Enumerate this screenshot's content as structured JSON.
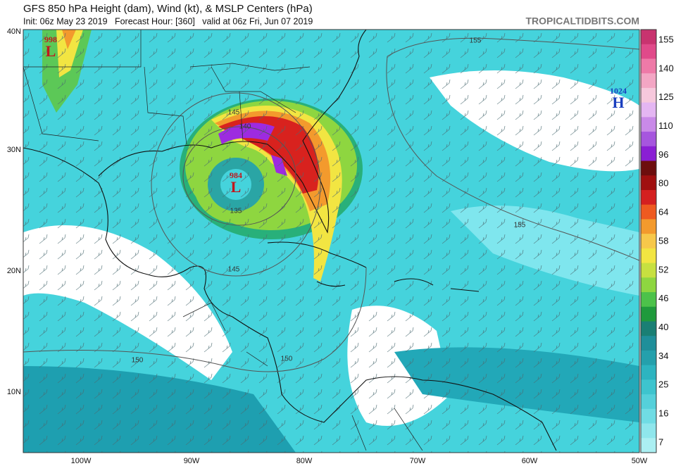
{
  "header": {
    "title": "GFS 850 hPa Height (dam), Wind (kt), & MSLP Centers (hPa)",
    "subtitle": "Init: 06z May 23 2019   Forecast Hour: [360]   valid at 06z Fri, Jun 07 2019",
    "credit": "TROPICALTIDBITS.COM"
  },
  "map": {
    "lat_labels": [
      "40N",
      "30N",
      "20N",
      "10N"
    ],
    "lon_labels": [
      "100W",
      "90W",
      "80W",
      "70W",
      "60W",
      "50W"
    ],
    "centers": [
      {
        "pressure": "998",
        "symbol": "L"
      },
      {
        "pressure": "984",
        "symbol": "L"
      },
      {
        "pressure": "1024",
        "symbol": "H"
      }
    ],
    "contour_labels": [
      "155",
      "155",
      "145",
      "140",
      "135",
      "145",
      "150",
      "150"
    ]
  },
  "colorbar": {
    "labels": [
      155,
      140,
      125,
      110,
      96,
      80,
      64,
      58,
      52,
      46,
      40,
      34,
      25,
      16,
      7
    ]
  }
}
